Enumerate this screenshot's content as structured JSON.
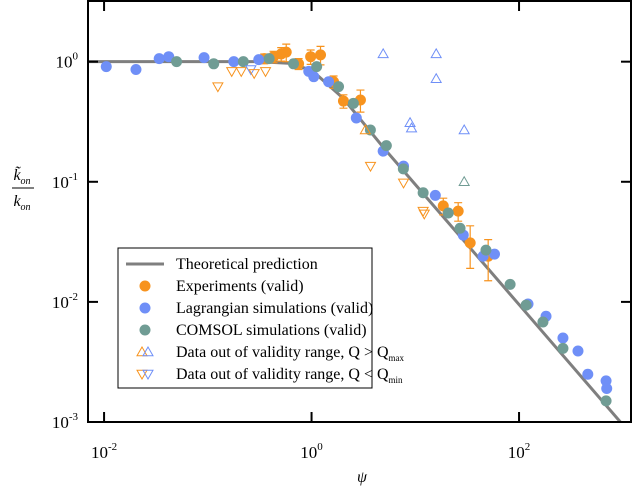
{
  "chart_data": {
    "type": "scatter",
    "xlabel": "ψ",
    "ylabel": {
      "numerator": "k̃",
      "denominator": "k",
      "subscript": "on"
    },
    "xscale": "log",
    "yscale": "log",
    "xlim": [
      0.007,
      1200
    ],
    "ylim": [
      0.001,
      3.2
    ],
    "xticks": [
      {
        "value": 0.01,
        "label": "10",
        "exponent": "-2"
      },
      {
        "value": 1,
        "label": "10",
        "exponent": "0"
      },
      {
        "value": 100,
        "label": "10",
        "exponent": "2"
      }
    ],
    "yticks": [
      {
        "value": 0.001,
        "label": "10",
        "exponent": "-3"
      },
      {
        "value": 0.01,
        "label": "10",
        "exponent": "-2"
      },
      {
        "value": 0.1,
        "label": "10",
        "exponent": "-1"
      },
      {
        "value": 1,
        "label": "10",
        "exponent": "0"
      }
    ],
    "legend": "lower-left",
    "series": [
      {
        "name": "Theoretical prediction",
        "marker": "line",
        "color": "#7f7f7f",
        "x": [
          0.007,
          0.3,
          0.6,
          1,
          2,
          5,
          10,
          100,
          1200
        ],
        "values": [
          1,
          1,
          0.97,
          0.85,
          0.5,
          0.19,
          0.095,
          0.0095,
          0.00079
        ]
      },
      {
        "name": "Experiments (valid)",
        "marker": "circle",
        "color": "#f7931e",
        "x": [
          0.35,
          0.43,
          0.51,
          0.57,
          0.75,
          0.98,
          1.22,
          1.63,
          2.03,
          2.96,
          18.6,
          25.9,
          33.8,
          50.4
        ],
        "values": [
          1.06,
          1.1,
          1.16,
          1.2,
          0.96,
          1.1,
          1.14,
          0.68,
          0.47,
          0.48,
          0.063,
          0.057,
          0.031,
          0.024
        ],
        "errors": [
          0.1,
          0.12,
          0.15,
          0.2,
          0.1,
          0.15,
          0.2,
          0.08,
          0.06,
          0.1,
          0.01,
          0.01,
          0.012,
          0.009
        ]
      },
      {
        "name": "Lagrangian simulations (valid)",
        "marker": "circle",
        "color": "#6f8ff7",
        "x": [
          0.0105,
          0.0203,
          0.034,
          0.042,
          0.092,
          0.178,
          0.31,
          0.94,
          1.05,
          1.46,
          2.7,
          4.9,
          7.7,
          15.6,
          29,
          45,
          58,
          122,
          182,
          265,
          370,
          460,
          690,
          700
        ],
        "values": [
          0.91,
          0.86,
          1.06,
          1.1,
          1.08,
          1.0,
          1.04,
          0.83,
          0.75,
          0.68,
          0.34,
          0.18,
          0.135,
          0.077,
          0.036,
          0.024,
          0.025,
          0.0096,
          0.0076,
          0.005,
          0.0039,
          0.0025,
          0.0022,
          0.0019
        ]
      },
      {
        "name": "COMSOL simulations (valid)",
        "marker": "circle",
        "color": "#709c94",
        "x": [
          0.05,
          0.114,
          0.22,
          0.39,
          0.67,
          1.12,
          1.82,
          2.53,
          3.69,
          5.26,
          7.67,
          11.9,
          20.8,
          27,
          48,
          82,
          117,
          170,
          265,
          690
        ],
        "values": [
          1.0,
          0.96,
          1.0,
          1.06,
          0.96,
          0.91,
          0.62,
          0.45,
          0.27,
          0.2,
          0.128,
          0.081,
          0.055,
          0.041,
          0.027,
          0.014,
          0.0094,
          0.0068,
          0.0041,
          0.0015
        ]
      },
      {
        "name": "Data out of validity range, Q > Q",
        "name_sub": "max",
        "marker": "triangle-up",
        "color": [
          "#f7931e",
          "#6f8ff7"
        ],
        "x": [
          3.3,
          4.9,
          8.9,
          9.2,
          15.9,
          15.9,
          29.6,
          29.6
        ],
        "values": [
          0.27,
          1.16,
          0.31,
          0.28,
          1.16,
          0.72,
          0.27,
          0.1
        ],
        "colors": [
          "#f7931e",
          "#6f8ff7",
          "#6f8ff7",
          "#6f8ff7",
          "#6f8ff7",
          "#6f8ff7",
          "#6f8ff7",
          "#709c94"
        ]
      },
      {
        "name": "Data out of validity range, Q < Q",
        "name_sub": "min",
        "marker": "triangle-down",
        "color": [
          "#f7931e",
          "#6f8ff7"
        ],
        "x": [
          0.125,
          0.17,
          0.21,
          0.26,
          0.28,
          0.36,
          3.7,
          7.7,
          11.9,
          12.2
        ],
        "values": [
          0.62,
          0.83,
          0.83,
          0.86,
          0.8,
          0.83,
          0.135,
          0.098,
          0.057,
          0.054
        ],
        "colors": [
          "#f7931e",
          "#f7931e",
          "#f7931e",
          "#6f8ff7",
          "#f7931e",
          "#f7931e",
          "#f7931e",
          "#f7931e",
          "#f7931e",
          "#f7931e"
        ]
      }
    ]
  }
}
